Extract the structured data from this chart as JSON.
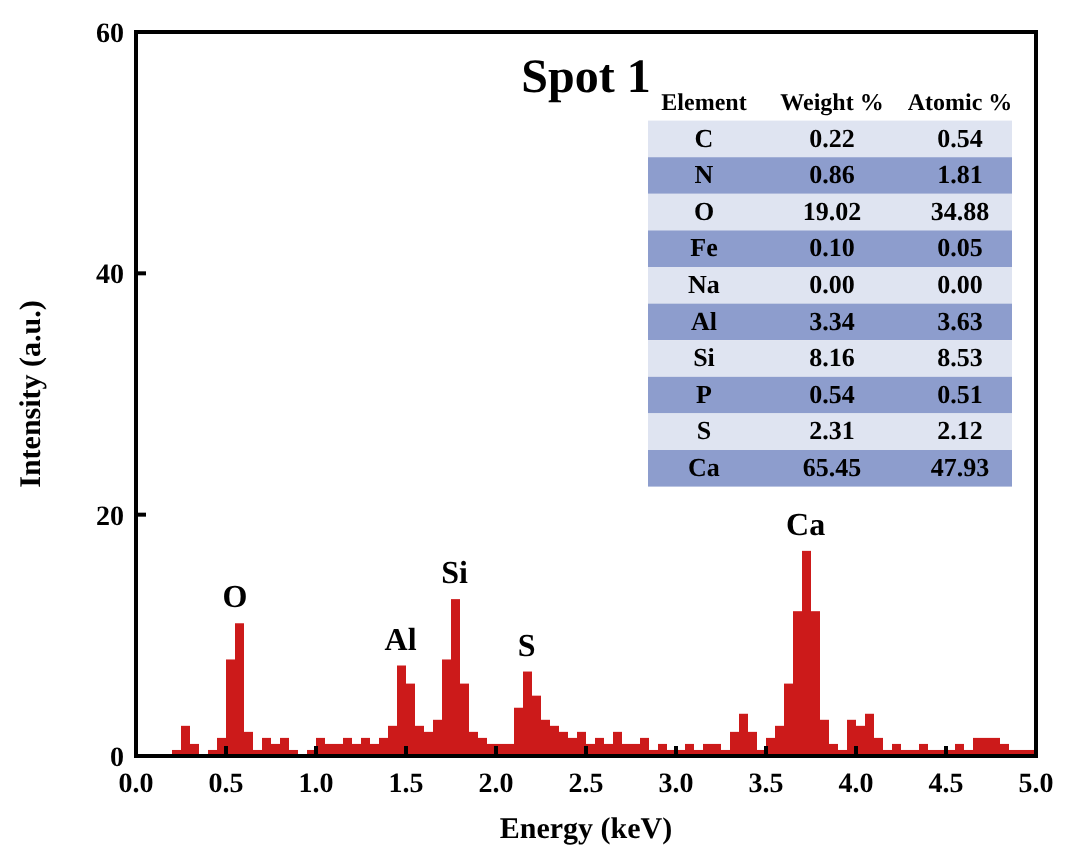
{
  "chart_data": [
    {
      "type": "histogram",
      "title": "Spot 1",
      "xlabel": "Energy (keV)",
      "ylabel": "Intensity (a.u.)",
      "color": "#cc1a1a",
      "bins": [
        0,
        0.05,
        0.1,
        0.15,
        0.2,
        0.25,
        0.3,
        0.35,
        0.4,
        0.45,
        0.5,
        0.55,
        0.6,
        0.65,
        0.7,
        0.75,
        0.8,
        0.85,
        0.9,
        0.95,
        1,
        1.05,
        1.1,
        1.15,
        1.2,
        1.25,
        1.3,
        1.35,
        1.4,
        1.45,
        1.5,
        1.55,
        1.6,
        1.65,
        1.7,
        1.75,
        1.8,
        1.85,
        1.9,
        1.95,
        2,
        2.05,
        2.1,
        2.15,
        2.2,
        2.25,
        2.3,
        2.35,
        2.4,
        2.45,
        2.5,
        2.55,
        2.6,
        2.65,
        2.7,
        2.75,
        2.8,
        2.85,
        2.9,
        2.95,
        3,
        3.05,
        3.1,
        3.15,
        3.2,
        3.25,
        3.3,
        3.35,
        3.4,
        3.45,
        3.5,
        3.55,
        3.6,
        3.65,
        3.7,
        3.75,
        3.8,
        3.85,
        3.9,
        3.95,
        4,
        4.05,
        4.1,
        4.15,
        4.2,
        4.25,
        4.3,
        4.35,
        4.4,
        4.45,
        4.5,
        4.55,
        4.6,
        4.65,
        4.7,
        4.75,
        4.8,
        4.85,
        4.9,
        4.95,
        5
      ],
      "values": [
        0,
        0,
        0,
        0,
        0.5,
        2.5,
        1,
        0,
        0.5,
        1.5,
        8,
        11,
        2,
        0.5,
        1.5,
        1,
        1.5,
        0.5,
        0,
        0.5,
        1.5,
        1,
        1,
        1.5,
        1,
        1.5,
        1,
        1.5,
        2.5,
        7.5,
        6,
        2.5,
        2,
        3,
        8,
        13,
        6,
        2,
        1.5,
        1,
        1,
        1,
        4,
        7,
        5,
        3,
        2.5,
        2,
        1.5,
        2,
        1,
        1.5,
        1,
        2,
        1,
        1,
        1.5,
        0.5,
        1,
        0.5,
        0.5,
        1,
        0.5,
        1,
        1,
        0.5,
        2,
        3.5,
        2,
        0.5,
        1.5,
        2.5,
        6,
        12,
        17,
        12,
        3,
        1,
        0.5,
        3,
        2.5,
        3.5,
        1.5,
        0.5,
        1,
        0.5,
        0.5,
        1,
        0.5,
        0.5,
        0.5,
        1,
        0.5,
        1.5,
        1.5,
        1.5,
        1,
        0.5,
        0.5,
        0.5
      ],
      "xlim": [
        0,
        5
      ],
      "xticks": [
        {
          "value": 0,
          "label": "0.0"
        },
        {
          "value": 0.5,
          "label": "0.5"
        },
        {
          "value": 1,
          "label": "1.0"
        },
        {
          "value": 1.5,
          "label": "1.5"
        },
        {
          "value": 2,
          "label": "2.0"
        },
        {
          "value": 2.5,
          "label": "2.5"
        },
        {
          "value": 3,
          "label": "3.0"
        },
        {
          "value": 3.5,
          "label": "3.5"
        },
        {
          "value": 4,
          "label": "4.0"
        },
        {
          "value": 4.5,
          "label": "4.5"
        },
        {
          "value": 5,
          "label": "5.0"
        }
      ],
      "ylim": [
        0,
        60
      ],
      "yticks": [
        0,
        20,
        40,
        60
      ],
      "annotations": [
        {
          "text": "O",
          "x": 0.55,
          "y": 11
        },
        {
          "text": "Al",
          "x": 1.47,
          "y": 7.5
        },
        {
          "text": "Si",
          "x": 1.77,
          "y": 13
        },
        {
          "text": "S",
          "x": 2.17,
          "y": 7
        },
        {
          "text": "Ca",
          "x": 3.72,
          "y": 17
        }
      ]
    },
    {
      "type": "other",
      "annotations": [
        "Element",
        "Weight %",
        "Atomic %",
        "C",
        "0.22",
        "0.54",
        "N",
        "0.86",
        "1.81",
        "O",
        "19.02",
        "34.88",
        "Fe",
        "0.10",
        "0.05",
        "Na",
        "0.00",
        "0.00",
        "Al",
        "3.34",
        "3.63",
        "Si",
        "8.16",
        "8.53",
        "P",
        "0.54",
        "0.51",
        "S",
        "2.31",
        "2.12",
        "Ca",
        "65.45",
        "47.93"
      ]
    }
  ]
}
